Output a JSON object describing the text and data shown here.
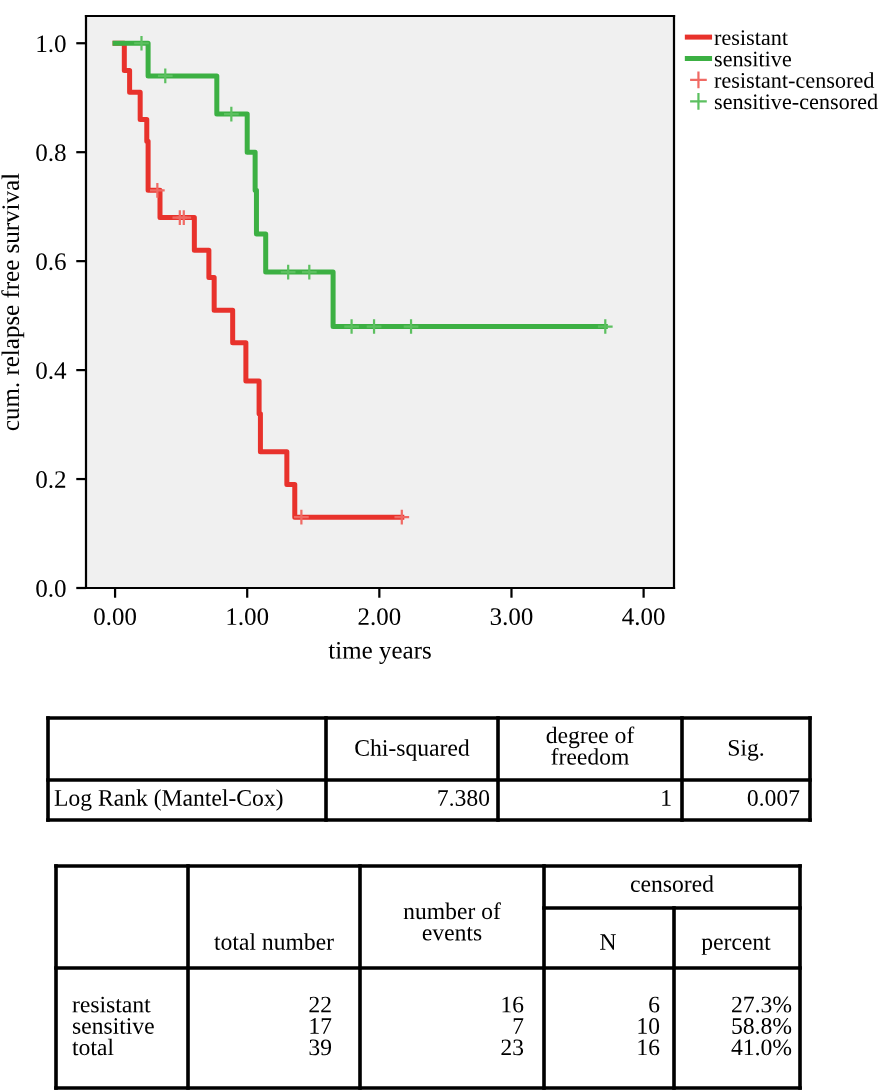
{
  "chart_data": [
    {
      "type": "step",
      "xlabel": "time years",
      "ylabel": "cum. relapse free survival",
      "xlim": [
        -0.22,
        4.23
      ],
      "ylim": [
        0.0,
        1.05
      ],
      "xticks": [
        {
          "value": 0,
          "label": "0.00"
        },
        {
          "value": 1,
          "label": "1.00"
        },
        {
          "value": 2,
          "label": "2.00"
        },
        {
          "value": 3,
          "label": "3.00"
        },
        {
          "value": 4,
          "label": "4.00"
        }
      ],
      "yticks": [
        {
          "value": 0,
          "label": "0.0"
        },
        0.2,
        0.4,
        0.6,
        0.8,
        {
          "value": 1,
          "label": "1.0"
        }
      ],
      "grid": false,
      "legend": "top right",
      "line_style": "solid",
      "series": [
        {
          "name": "resistant",
          "type": "step",
          "marker": "none",
          "color": "#e8322c",
          "x": [
            0,
            0.07,
            0.11,
            0.19,
            0.24,
            0.25,
            0.34,
            0.6,
            0.71,
            0.75,
            0.89,
            0.99,
            1.09,
            1.1,
            1.3,
            1.36,
            2.17
          ],
          "values": [
            1.0,
            0.95,
            0.91,
            0.86,
            0.82,
            0.73,
            0.68,
            0.62,
            0.57,
            0.51,
            0.45,
            0.38,
            0.32,
            0.25,
            0.19,
            0.13,
            0.13
          ]
        },
        {
          "name": "sensitive",
          "type": "step",
          "marker": "none",
          "color": "#3cb043",
          "x": [
            0,
            0.25,
            0.77,
            1.0,
            1.06,
            1.07,
            1.14,
            1.65,
            3.71
          ],
          "values": [
            1.0,
            0.94,
            0.87,
            0.8,
            0.73,
            0.65,
            0.58,
            0.48,
            0.48
          ]
        },
        {
          "name": "resistant-censored",
          "type": "scatter",
          "marker": "cross",
          "color": "#f06a64",
          "x": [
            0.32,
            0.49,
            0.52,
            1.41,
            2.17
          ],
          "values": [
            0.73,
            0.68,
            0.68,
            0.13,
            0.13
          ]
        },
        {
          "name": "sensitive-censored",
          "type": "scatter",
          "marker": "cross",
          "color": "#5cc060",
          "x": [
            0.2,
            0.38,
            0.88,
            1.31,
            1.47,
            1.79,
            1.96,
            2.24,
            3.71
          ],
          "values": [
            1.0,
            0.94,
            0.87,
            0.58,
            0.58,
            0.48,
            0.48,
            0.48,
            0.48
          ]
        }
      ]
    },
    {
      "type": "other",
      "annotations": [
        "Chi-squared",
        "degree of\nfreedom",
        "Sig.",
        "Log Rank (Mantel-Cox)",
        "7.380",
        "1",
        "0.007"
      ]
    },
    {
      "type": "other",
      "annotations": [
        "censored",
        "total number",
        "number of\nevents",
        "N",
        "percent",
        "resistant\nsensitive\ntotal",
        "22\n17\n39",
        "16\n7\n23",
        "6\n10\n16",
        "27.3%\n58.8%\n41.0%"
      ]
    }
  ]
}
